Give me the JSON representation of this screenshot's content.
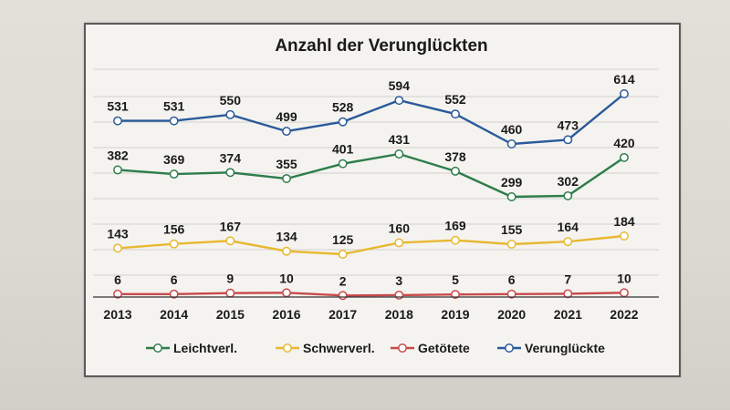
{
  "chart_data": {
    "type": "line",
    "title": "Anzahl der Verunglückten",
    "xlabel": "",
    "ylabel": "",
    "x": [
      "2013",
      "2014",
      "2015",
      "2016",
      "2017",
      "2018",
      "2019",
      "2020",
      "2021",
      "2022"
    ],
    "series": [
      {
        "name": "Leichtverl.",
        "color": "#2e7d4a",
        "values": [
          382,
          369,
          374,
          355,
          401,
          431,
          378,
          299,
          302,
          420
        ]
      },
      {
        "name": "Schwerverl.",
        "color": "#e8b830",
        "values": [
          143,
          156,
          167,
          134,
          125,
          160,
          169,
          155,
          164,
          184
        ]
      },
      {
        "name": "Getötete",
        "color": "#c84a4a",
        "values": [
          6,
          6,
          9,
          10,
          2,
          3,
          5,
          6,
          7,
          10
        ]
      },
      {
        "name": "Verunglückte",
        "color": "#2a5a9a",
        "values": [
          531,
          531,
          550,
          499,
          528,
          594,
          552,
          460,
          473,
          614
        ]
      }
    ],
    "grid": true,
    "legend_position": "bottom"
  }
}
